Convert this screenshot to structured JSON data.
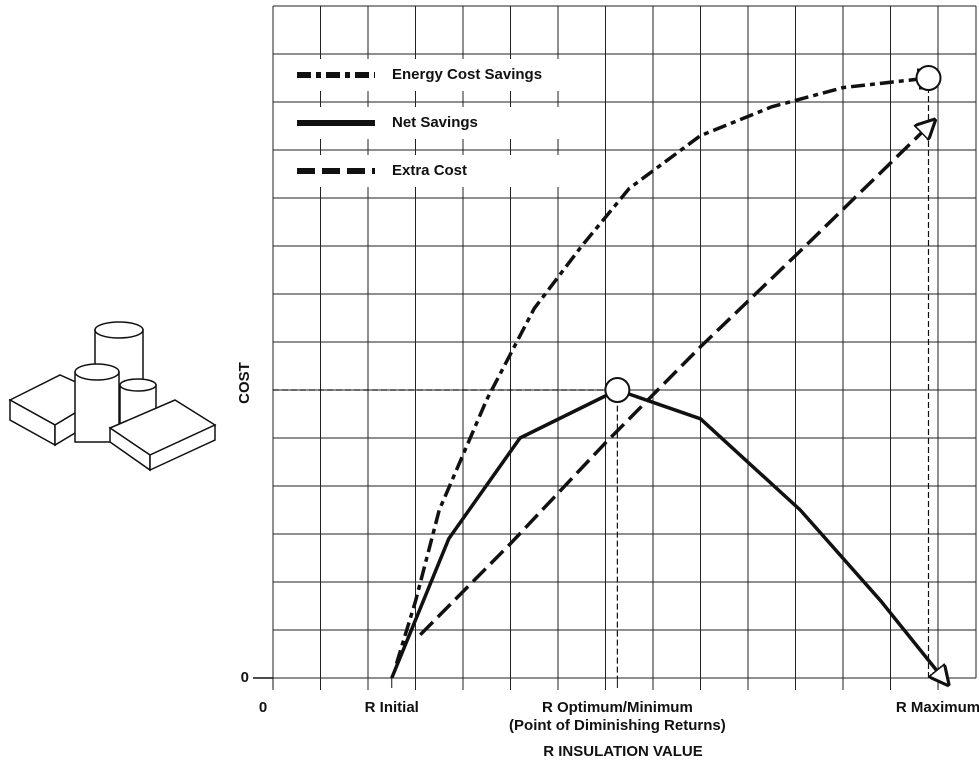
{
  "chart_data": {
    "type": "line",
    "xlabel": "R INSULATION VALUE",
    "ylabel": "COST",
    "xlim": [
      0,
      14.8
    ],
    "ylim": [
      0,
      14
    ],
    "xticks": [
      0,
      {
        "value": 2.5,
        "label": "R Initial"
      },
      {
        "value": 7.25,
        "label": "R Optimum/Minimum"
      },
      {
        "value": 14,
        "label": "R Maximum"
      }
    ],
    "yticks": [
      0
    ],
    "annotation": "(Point of Diminishing Returns)",
    "grid": true,
    "legend": "upper left",
    "series": [
      {
        "name": "Energy Cost Savings",
        "color": "#111111",
        "dash": "14 5 5 5",
        "x": [
          2.6,
          3.0,
          3.5,
          4.5,
          5.5,
          6.5,
          7.5,
          9,
          10.5,
          12,
          13.8
        ],
        "values": [
          0.3,
          1.6,
          3.5,
          5.8,
          7.7,
          9.0,
          10.2,
          11.3,
          11.9,
          12.3,
          12.5
        ]
      },
      {
        "name": "Net Savings",
        "color": "#111111",
        "dash": "none",
        "x": [
          2.5,
          3.7,
          5.2,
          7.25,
          9,
          11.1,
          12.8,
          14.1
        ],
        "values": [
          0,
          2.9,
          5.0,
          6.0,
          5.4,
          3.5,
          1.6,
          0
        ]
      },
      {
        "name": "Extra Cost",
        "color": "#111111",
        "dash": "18 7",
        "x": [
          3.1,
          5,
          7,
          9,
          11,
          13.8
        ],
        "values": [
          0.9,
          2.8,
          4.9,
          6.9,
          8.8,
          11.5
        ]
      }
    ]
  }
}
